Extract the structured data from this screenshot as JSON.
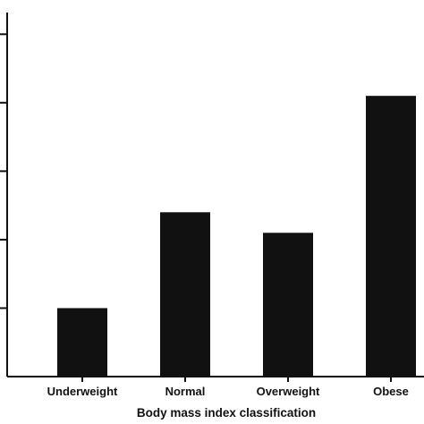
{
  "chart_data": {
    "type": "bar",
    "title": "",
    "xlabel": "Body mass index classification",
    "ylabel": "",
    "categories": [
      "Underweight",
      "Normal",
      "Overweight",
      "Obese"
    ],
    "values": [
      1,
      2.4,
      2.1,
      4.1
    ],
    "ylim": [
      0,
      5.5
    ],
    "grid": false,
    "legend": "none",
    "colors": {
      "bar": "#111111",
      "axis": "#111111"
    }
  }
}
